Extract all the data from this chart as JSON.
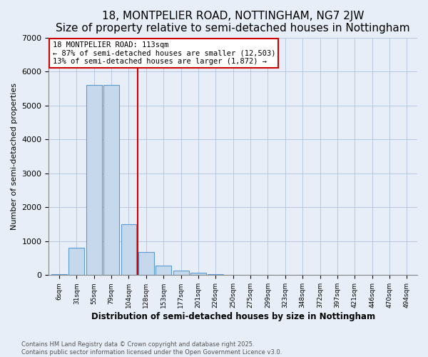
{
  "title": "18, MONTPELIER ROAD, NOTTINGHAM, NG7 2JW",
  "subtitle": "Size of property relative to semi-detached houses in Nottingham",
  "bar_labels": [
    "6sqm",
    "31sqm",
    "55sqm",
    "79sqm",
    "104sqm",
    "128sqm",
    "153sqm",
    "177sqm",
    "201sqm",
    "226sqm",
    "250sqm",
    "275sqm",
    "299sqm",
    "323sqm",
    "348sqm",
    "372sqm",
    "397sqm",
    "421sqm",
    "446sqm",
    "470sqm",
    "494sqm"
  ],
  "bar_values": [
    20,
    800,
    5600,
    5600,
    1500,
    680,
    290,
    135,
    60,
    25,
    5,
    0,
    0,
    0,
    0,
    0,
    0,
    0,
    0,
    0,
    0
  ],
  "bar_color": "#c6d9ec",
  "bar_edge_color": "#5b9bd5",
  "grid_color": "#b0c4de",
  "bg_color": "#e8eef8",
  "vline_color": "#cc0000",
  "vline_x": 4.5,
  "annotation_title": "18 MONTPELIER ROAD: 113sqm",
  "annotation_line1": "← 87% of semi-detached houses are smaller (12,503)",
  "annotation_line2": "13% of semi-detached houses are larger (1,872) →",
  "annotation_box_edgecolor": "#cc0000",
  "annotation_box_facecolor": "white",
  "ylabel": "Number of semi-detached properties",
  "xlabel": "Distribution of semi-detached houses by size in Nottingham",
  "ylim": [
    0,
    7000
  ],
  "yticks": [
    0,
    1000,
    2000,
    3000,
    4000,
    5000,
    6000,
    7000
  ],
  "title_fontsize": 11,
  "subtitle_fontsize": 9,
  "footnote1": "Contains HM Land Registry data © Crown copyright and database right 2025.",
  "footnote2": "Contains public sector information licensed under the Open Government Licence v3.0."
}
